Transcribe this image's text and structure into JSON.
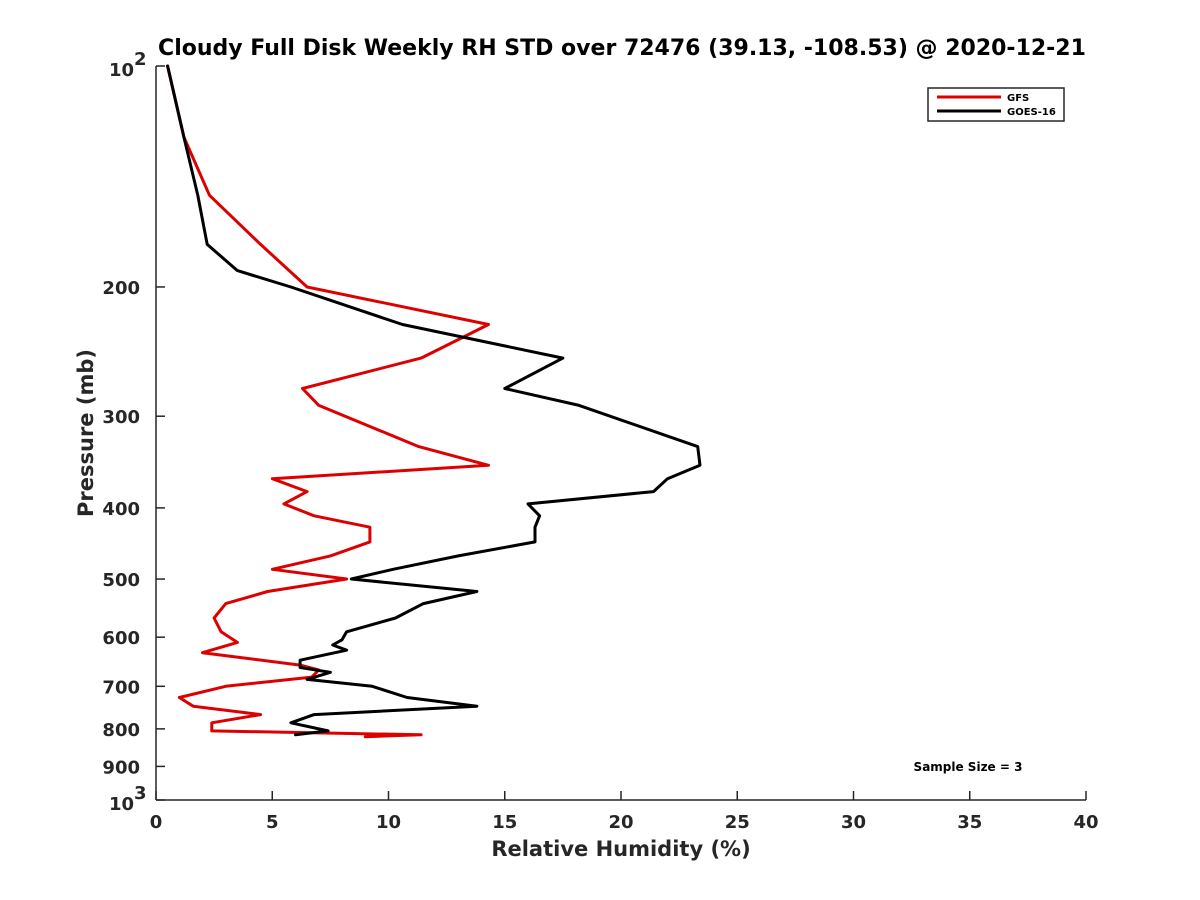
{
  "chart_data": {
    "type": "line",
    "title": "Cloudy Full Disk Weekly RH STD over 72476 (39.13, -108.53) @ 2020-12-21",
    "xlabel": "Relative Humidity (%)",
    "ylabel": "Pressure (mb)",
    "xlim": [
      0,
      40
    ],
    "ylim": [
      100,
      1000
    ],
    "y_scale": "log",
    "y_reversed": true,
    "grid": false,
    "legend_position": "top-right",
    "x_ticks": [
      0,
      5,
      10,
      15,
      20,
      25,
      30,
      35,
      40
    ],
    "y_ticks": [
      {
        "value": 100,
        "label": "10",
        "sup": "2"
      },
      {
        "value": 200,
        "label": "200",
        "sup": ""
      },
      {
        "value": 300,
        "label": "300",
        "sup": ""
      },
      {
        "value": 400,
        "label": "400",
        "sup": ""
      },
      {
        "value": 500,
        "label": "500",
        "sup": ""
      },
      {
        "value": 600,
        "label": "600",
        "sup": ""
      },
      {
        "value": 700,
        "label": "700",
        "sup": ""
      },
      {
        "value": 800,
        "label": "800",
        "sup": ""
      },
      {
        "value": 900,
        "label": "900",
        "sup": ""
      },
      {
        "value": 1000,
        "label": "10",
        "sup": "3"
      }
    ],
    "annotation": "Sample Size = 3",
    "series": [
      {
        "name": "GFS",
        "color": "#dd0000",
        "points": [
          [
            0.5,
            100
          ],
          [
            1.2,
            125
          ],
          [
            2.3,
            150
          ],
          [
            4.5,
            175
          ],
          [
            6.5,
            200
          ],
          [
            14.3,
            225
          ],
          [
            11.4,
            250
          ],
          [
            6.3,
            275
          ],
          [
            7.0,
            290
          ],
          [
            11.3,
            330
          ],
          [
            14.3,
            350
          ],
          [
            5.0,
            365
          ],
          [
            6.5,
            380
          ],
          [
            5.5,
            395
          ],
          [
            6.8,
            410
          ],
          [
            9.2,
            425
          ],
          [
            9.2,
            445
          ],
          [
            7.5,
            465
          ],
          [
            5.0,
            485
          ],
          [
            8.2,
            500
          ],
          [
            4.8,
            520
          ],
          [
            3.0,
            540
          ],
          [
            2.5,
            565
          ],
          [
            2.8,
            590
          ],
          [
            3.5,
            610
          ],
          [
            2.0,
            630
          ],
          [
            6.2,
            655
          ],
          [
            7.0,
            665
          ],
          [
            6.7,
            680
          ],
          [
            3.0,
            700
          ],
          [
            1.0,
            725
          ],
          [
            1.6,
            745
          ],
          [
            4.5,
            765
          ],
          [
            2.4,
            785
          ],
          [
            2.4,
            805
          ],
          [
            11.4,
            815
          ],
          [
            9.0,
            820
          ]
        ]
      },
      {
        "name": "GOES-16",
        "color": "#000000",
        "points": [
          [
            0.5,
            100
          ],
          [
            1.2,
            125
          ],
          [
            1.8,
            150
          ],
          [
            2.2,
            175
          ],
          [
            3.5,
            190
          ],
          [
            5.8,
            200
          ],
          [
            10.6,
            225
          ],
          [
            17.5,
            250
          ],
          [
            15.0,
            275
          ],
          [
            18.2,
            290
          ],
          [
            23.3,
            330
          ],
          [
            23.4,
            350
          ],
          [
            22.0,
            365
          ],
          [
            21.4,
            380
          ],
          [
            16.0,
            395
          ],
          [
            16.5,
            410
          ],
          [
            16.3,
            425
          ],
          [
            16.3,
            445
          ],
          [
            13.0,
            465
          ],
          [
            10.2,
            485
          ],
          [
            8.4,
            500
          ],
          [
            13.8,
            520
          ],
          [
            11.5,
            540
          ],
          [
            10.3,
            565
          ],
          [
            8.2,
            590
          ],
          [
            8.0,
            605
          ],
          [
            7.6,
            615
          ],
          [
            8.2,
            625
          ],
          [
            6.2,
            645
          ],
          [
            6.2,
            660
          ],
          [
            7.5,
            670
          ],
          [
            6.5,
            685
          ],
          [
            9.3,
            700
          ],
          [
            10.8,
            725
          ],
          [
            13.8,
            745
          ],
          [
            6.8,
            765
          ],
          [
            5.8,
            785
          ],
          [
            7.4,
            805
          ],
          [
            6.0,
            815
          ]
        ]
      }
    ]
  }
}
